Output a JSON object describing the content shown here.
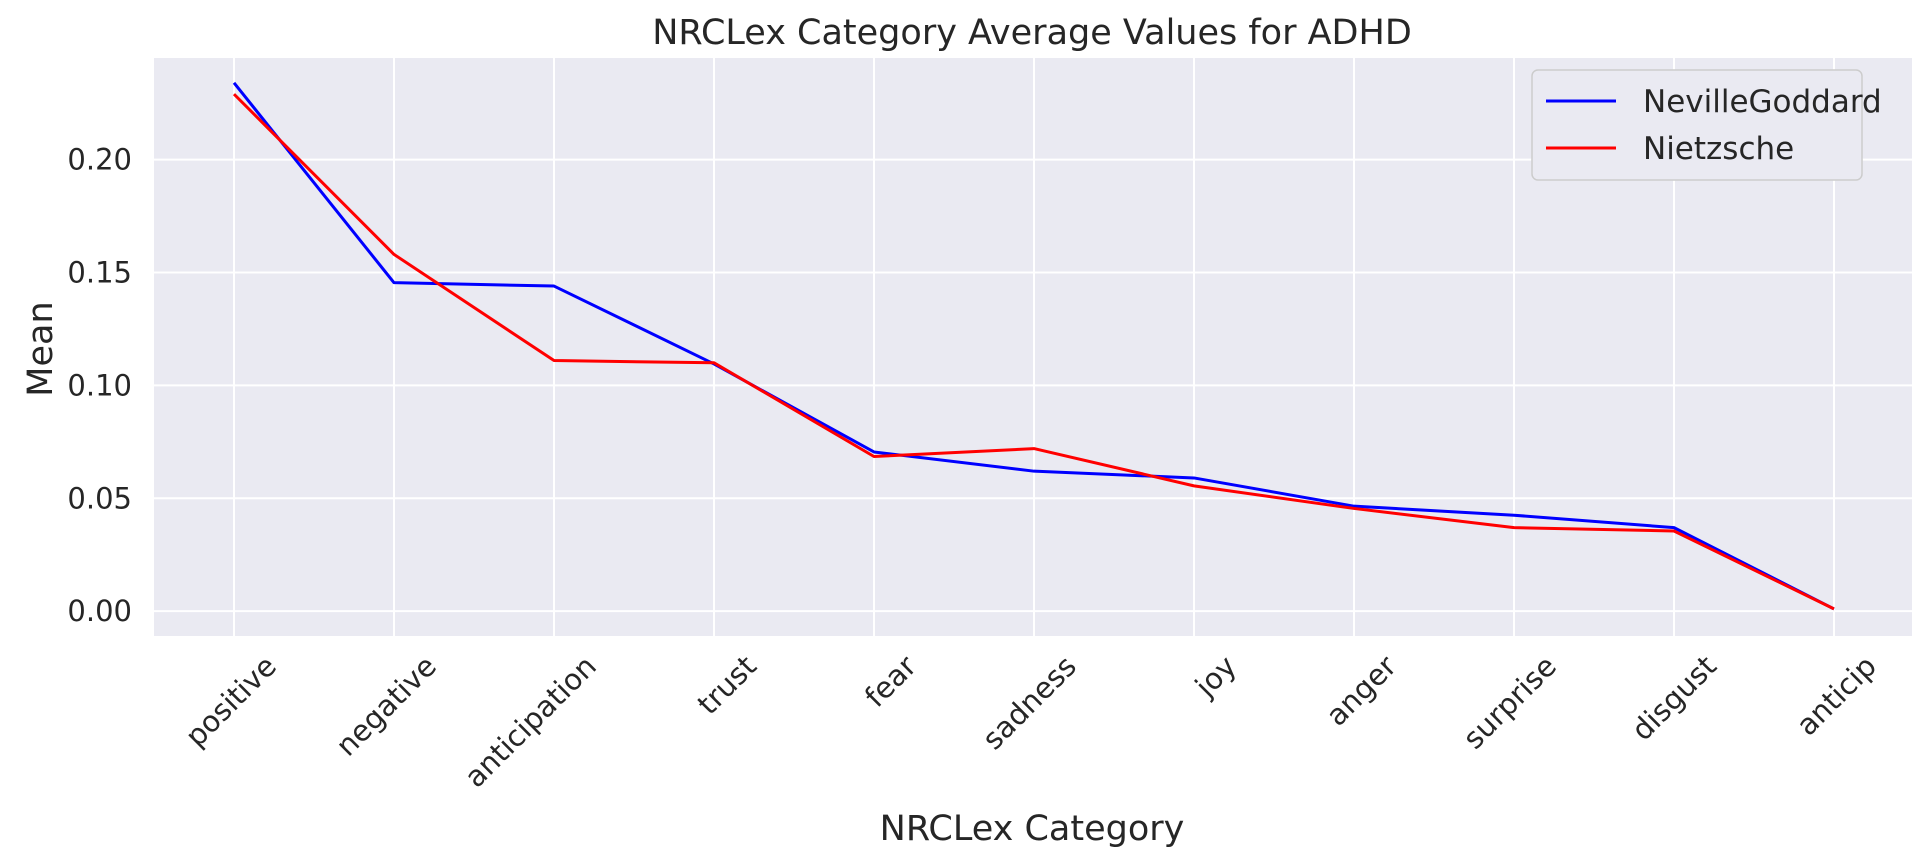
{
  "chart_data": {
    "type": "line",
    "title": "NRCLex Category Average Values for ADHD",
    "xlabel": "NRCLex Category",
    "ylabel": "Mean",
    "categories": [
      "positive",
      "negative",
      "anticipation",
      "trust",
      "fear",
      "sadness",
      "joy",
      "anger",
      "surprise",
      "disgust",
      "anticip"
    ],
    "series": [
      {
        "name": "NevilleGoddard",
        "color": "#0000ff",
        "values": [
          0.234,
          0.1455,
          0.144,
          0.1095,
          0.0705,
          0.062,
          0.059,
          0.0465,
          0.0425,
          0.037,
          0.001
        ]
      },
      {
        "name": "Nietzsche",
        "color": "#ff0000",
        "values": [
          0.229,
          0.158,
          0.111,
          0.11,
          0.0685,
          0.072,
          0.0555,
          0.0455,
          0.037,
          0.0355,
          0.001
        ]
      }
    ],
    "ylim": [
      -0.011,
      0.245
    ],
    "yticks": [
      "0.00",
      "0.05",
      "0.10",
      "0.15",
      "0.20"
    ],
    "grid": true,
    "legend_position": "top-right",
    "colors": {
      "plot_background": "#eaeaf2",
      "grid": "#ffffff",
      "text": "#262626"
    }
  }
}
